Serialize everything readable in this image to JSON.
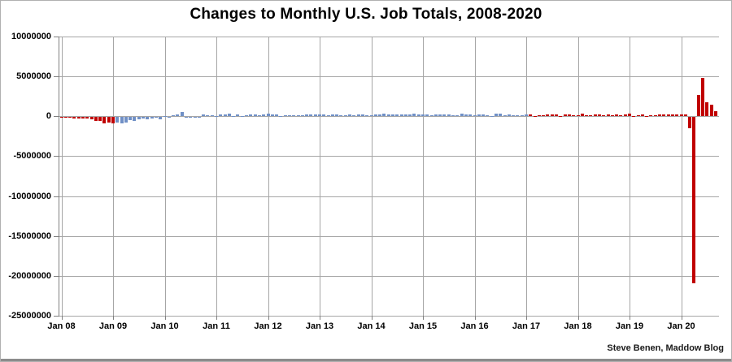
{
  "footer": {
    "credit": "Steve Benen, Maddow Blog"
  },
  "colors": {
    "red_bar": "#c00000",
    "blue_bar": "#7090c6",
    "gridline": "#a6a6a6",
    "axis": "#808080",
    "bottom_strip": "#8c8c8c",
    "title_text": "#000000"
  },
  "chart_data": {
    "type": "bar",
    "title": "Changes to Monthly U.S. Job Totals, 2008-2020",
    "x_unit": "month",
    "start_month": "2008-01",
    "end_month": "2020-09",
    "ylim": [
      -25000000,
      10000000
    ],
    "grid": true,
    "legend": "none",
    "y_tick_values": [
      10000000,
      5000000,
      0,
      -5000000,
      -10000000,
      -15000000,
      -20000000,
      -25000000
    ],
    "y_tick_labels": [
      "10000000",
      "5000000",
      "0",
      "-5000000",
      "-10000000",
      "-15000000",
      "-20000000",
      "-25000000"
    ],
    "x_tick_labels": [
      "Jan 08",
      "Jan 09",
      "Jan 10",
      "Jan 11",
      "Jan 12",
      "Jan 13",
      "Jan 14",
      "Jan 15",
      "Jan 16",
      "Jan 17",
      "Jan 18",
      "Jan 19",
      "Jan 20"
    ],
    "bar_colors": {
      "red": "#c00000",
      "blue": "#7090c6"
    },
    "color_segments": [
      {
        "from_index": 0,
        "to_index": 12,
        "color": "red"
      },
      {
        "from_index": 13,
        "to_index": 108,
        "color": "blue"
      },
      {
        "from_index": 109,
        "to_index": 152,
        "color": "red"
      }
    ],
    "values": [
      -17000,
      -83000,
      -72000,
      -214000,
      -182000,
      -172000,
      -210000,
      -259000,
      -452000,
      -474000,
      -765000,
      -697000,
      -798000,
      -701000,
      -826000,
      -684000,
      -354000,
      -467000,
      -327000,
      -216000,
      -227000,
      -198000,
      -6000,
      -283000,
      18000,
      -50000,
      156000,
      251000,
      516000,
      -122000,
      -61000,
      -42000,
      -57000,
      271000,
      121000,
      88000,
      42000,
      188000,
      225000,
      346000,
      73000,
      235000,
      70000,
      107000,
      246000,
      202000,
      146000,
      207000,
      338000,
      257000,
      239000,
      75000,
      115000,
      87000,
      143000,
      181000,
      161000,
      225000,
      203000,
      214000,
      197000,
      280000,
      141000,
      203000,
      199000,
      177000,
      149000,
      202000,
      164000,
      237000,
      274000,
      84000,
      144000,
      222000,
      203000,
      304000,
      229000,
      267000,
      243000,
      203000,
      271000,
      243000,
      321000,
      256000,
      201000,
      266000,
      84000,
      251000,
      273000,
      228000,
      277000,
      150000,
      145000,
      295000,
      280000,
      271000,
      168000,
      233000,
      225000,
      153000,
      43000,
      297000,
      291000,
      176000,
      249000,
      124000,
      164000,
      155000,
      216000,
      232000,
      50000,
      175000,
      155000,
      239000,
      189000,
      221000,
      14000,
      271000,
      216000,
      175000,
      176000,
      324000,
      155000,
      175000,
      268000,
      208000,
      178000,
      282000,
      108000,
      277000,
      119000,
      227000,
      312000,
      56000,
      153000,
      216000,
      62000,
      178000,
      166000,
      219000,
      193000,
      185000,
      261000,
      184000,
      214000,
      251000,
      -1373000,
      -20787000,
      2725000,
      4781000,
      1734000,
      1489000,
      661000
    ]
  }
}
